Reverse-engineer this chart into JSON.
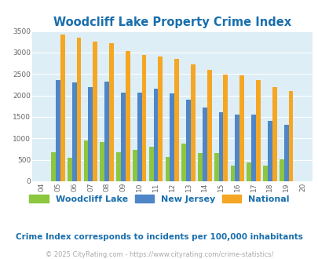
{
  "title": "Woodcliff Lake Property Crime Index",
  "years": [
    "04",
    "05",
    "06",
    "07",
    "08",
    "09",
    "10",
    "11",
    "12",
    "13",
    "14",
    "15",
    "16",
    "17",
    "18",
    "19",
    "20"
  ],
  "woodcliff_lake": [
    0,
    680,
    540,
    960,
    910,
    680,
    730,
    800,
    570,
    880,
    660,
    660,
    370,
    440,
    360,
    510,
    0
  ],
  "new_jersey": [
    0,
    2360,
    2310,
    2200,
    2330,
    2060,
    2060,
    2150,
    2050,
    1900,
    1720,
    1610,
    1550,
    1550,
    1400,
    1310,
    0
  ],
  "national": [
    0,
    3420,
    3340,
    3260,
    3210,
    3040,
    2950,
    2910,
    2860,
    2730,
    2590,
    2490,
    2470,
    2360,
    2200,
    2110,
    0
  ],
  "woodcliff_color": "#8dc63f",
  "nj_color": "#4e86c8",
  "national_color": "#f5a623",
  "bg_color": "#ddeef6",
  "ylim": [
    0,
    3500
  ],
  "yticks": [
    0,
    500,
    1000,
    1500,
    2000,
    2500,
    3000,
    3500
  ],
  "title_color": "#1a6fad",
  "subtitle": "Crime Index corresponds to incidents per 100,000 inhabitants",
  "subtitle_color": "#1a6fad",
  "footer": "© 2025 CityRating.com - https://www.cityrating.com/crime-statistics/",
  "footer_color": "#aaaaaa",
  "legend_labels": [
    "Woodcliff Lake",
    "New Jersey",
    "National"
  ]
}
